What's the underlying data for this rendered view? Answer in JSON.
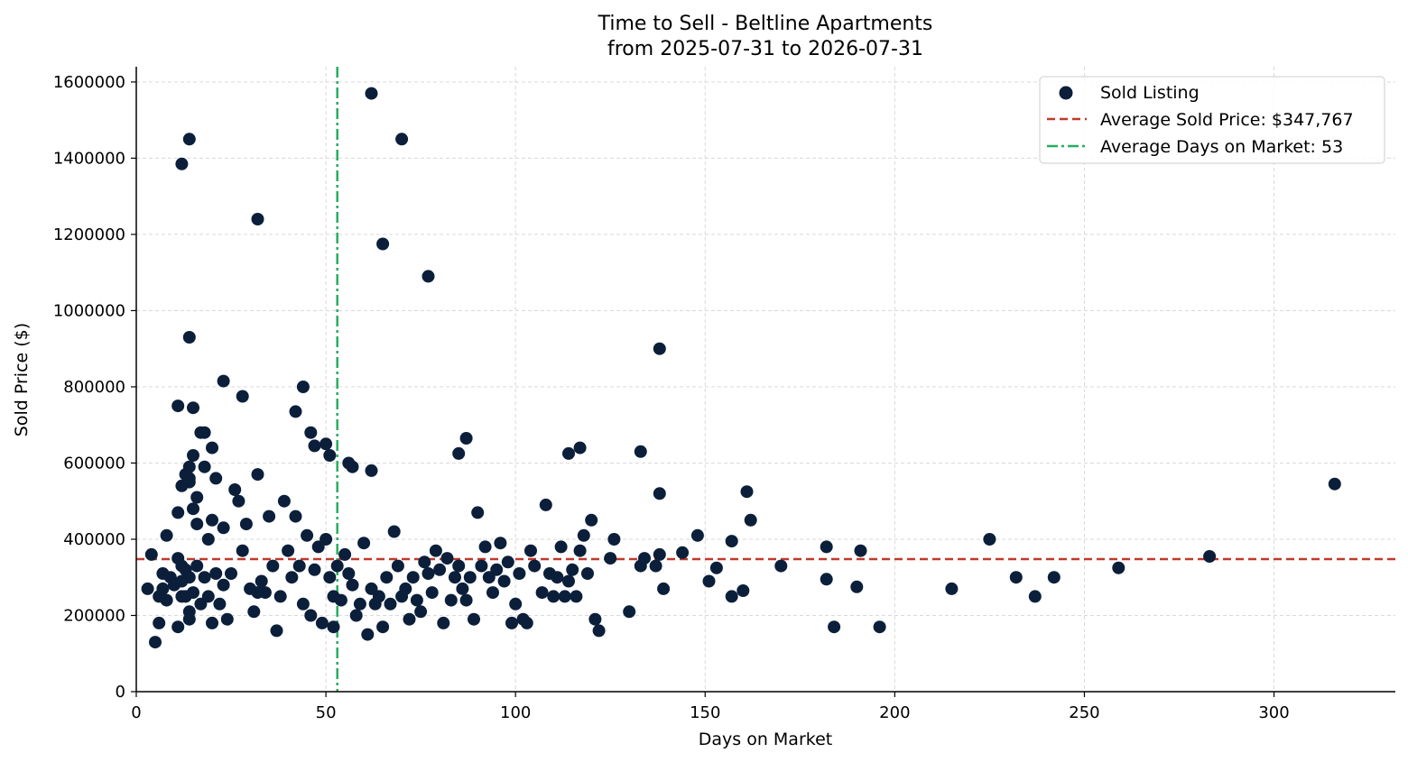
{
  "chart_data": {
    "type": "scatter",
    "title": "Time to Sell - Beltline Apartments",
    "subtitle": "from 2025-07-31 to 2026-07-31",
    "xlabel": "Days on Market",
    "ylabel": "Sold Price ($)",
    "xlim": [
      0,
      332
    ],
    "ylim": [
      0,
      1640000
    ],
    "xticks": [
      "0",
      "50",
      "100",
      "150",
      "200",
      "250",
      "300"
    ],
    "yticks": [
      "0",
      "200000",
      "400000",
      "600000",
      "800000",
      "1000000",
      "1200000",
      "1400000",
      "1600000"
    ],
    "grid": true,
    "legend_position": "top-right",
    "colors": {
      "points": "#0b1f3a",
      "avg_price": "#c0392b",
      "avg_days": "#27ae60"
    },
    "series": [
      {
        "name": "Sold Listing",
        "x": [
          3,
          4,
          5,
          6,
          6,
          7,
          7,
          8,
          8,
          9,
          10,
          11,
          11,
          11,
          12,
          12,
          12,
          13,
          13,
          13,
          14,
          14,
          14,
          14,
          15,
          15,
          15,
          16,
          16,
          17,
          17,
          18,
          18,
          19,
          19,
          20,
          20,
          21,
          21,
          22,
          23,
          23,
          24,
          25,
          26,
          27,
          28,
          29,
          30,
          31,
          32,
          33,
          34,
          35,
          36,
          37,
          38,
          39,
          40,
          41,
          42,
          43,
          44,
          45,
          46,
          47,
          48,
          49,
          50,
          51,
          52,
          52,
          53,
          54,
          55,
          56,
          57,
          58,
          59,
          60,
          61,
          62,
          63,
          64,
          65,
          66,
          67,
          68,
          69,
          70,
          71,
          72,
          73,
          74,
          75,
          76,
          77,
          78,
          79,
          80,
          81,
          82,
          83,
          84,
          85,
          86,
          87,
          88,
          89,
          90,
          91,
          92,
          93,
          94,
          95,
          96,
          97,
          98,
          99,
          100,
          101,
          102,
          103,
          104,
          105,
          107,
          108,
          109,
          110,
          111,
          112,
          113,
          114,
          115,
          116,
          117,
          118,
          119,
          120,
          121,
          122,
          125,
          126,
          130,
          133,
          134,
          137,
          138,
          139,
          144,
          148,
          151,
          153,
          157,
          157,
          160,
          161,
          162,
          170,
          182,
          182,
          184,
          190,
          191,
          196,
          215,
          225,
          232,
          237,
          242,
          259,
          283,
          316,
          12,
          14,
          14,
          11,
          15,
          16,
          18,
          20,
          23,
          28,
          32,
          42,
          44,
          46,
          47,
          50,
          51,
          56,
          57,
          62,
          65,
          70,
          77,
          85,
          87,
          114,
          117,
          133,
          138,
          138,
          62,
          14,
          14,
          12,
          32
        ],
        "y": [
          270000,
          360000,
          130000,
          180000,
          250000,
          310000,
          270000,
          410000,
          240000,
          300000,
          280000,
          350000,
          170000,
          470000,
          330000,
          540000,
          290000,
          570000,
          250000,
          320000,
          590000,
          300000,
          210000,
          190000,
          620000,
          480000,
          260000,
          510000,
          330000,
          680000,
          230000,
          590000,
          300000,
          400000,
          250000,
          450000,
          180000,
          560000,
          310000,
          230000,
          430000,
          280000,
          190000,
          310000,
          530000,
          500000,
          370000,
          440000,
          270000,
          210000,
          570000,
          290000,
          260000,
          460000,
          330000,
          160000,
          250000,
          500000,
          370000,
          300000,
          460000,
          330000,
          230000,
          410000,
          200000,
          320000,
          380000,
          180000,
          400000,
          300000,
          170000,
          250000,
          330000,
          240000,
          360000,
          310000,
          280000,
          200000,
          230000,
          390000,
          150000,
          270000,
          230000,
          250000,
          170000,
          300000,
          230000,
          420000,
          330000,
          250000,
          270000,
          190000,
          300000,
          240000,
          210000,
          340000,
          310000,
          260000,
          370000,
          320000,
          180000,
          350000,
          240000,
          300000,
          330000,
          270000,
          240000,
          300000,
          190000,
          470000,
          330000,
          380000,
          300000,
          260000,
          320000,
          390000,
          290000,
          340000,
          180000,
          230000,
          310000,
          190000,
          180000,
          370000,
          330000,
          260000,
          490000,
          310000,
          250000,
          300000,
          380000,
          250000,
          290000,
          320000,
          250000,
          370000,
          410000,
          310000,
          450000,
          190000,
          160000,
          350000,
          400000,
          210000,
          330000,
          350000,
          330000,
          360000,
          270000,
          365000,
          410000,
          290000,
          325000,
          250000,
          395000,
          265000,
          525000,
          450000,
          330000,
          380000,
          295000,
          170000,
          275000,
          370000,
          170000,
          270000,
          400000,
          300000,
          250000,
          300000,
          325000,
          355000,
          545000,
          1385000,
          1450000,
          930000,
          750000,
          745000,
          440000,
          680000,
          640000,
          815000,
          775000,
          1240000,
          735000,
          800000,
          680000,
          645000,
          650000,
          620000,
          600000,
          590000,
          1570000,
          1175000,
          1450000,
          1090000,
          625000,
          665000,
          625000,
          640000,
          630000,
          900000,
          520000,
          580000,
          550000,
          560000,
          250000,
          260000
        ],
        "marker": "circle"
      }
    ],
    "lines": [
      {
        "name": "Average Sold Price: $347,767",
        "orientation": "horizontal",
        "value": 347767,
        "style": "dashed"
      },
      {
        "name": "Average Days on Market: 53",
        "orientation": "vertical",
        "value": 53,
        "style": "dashdot"
      }
    ]
  }
}
